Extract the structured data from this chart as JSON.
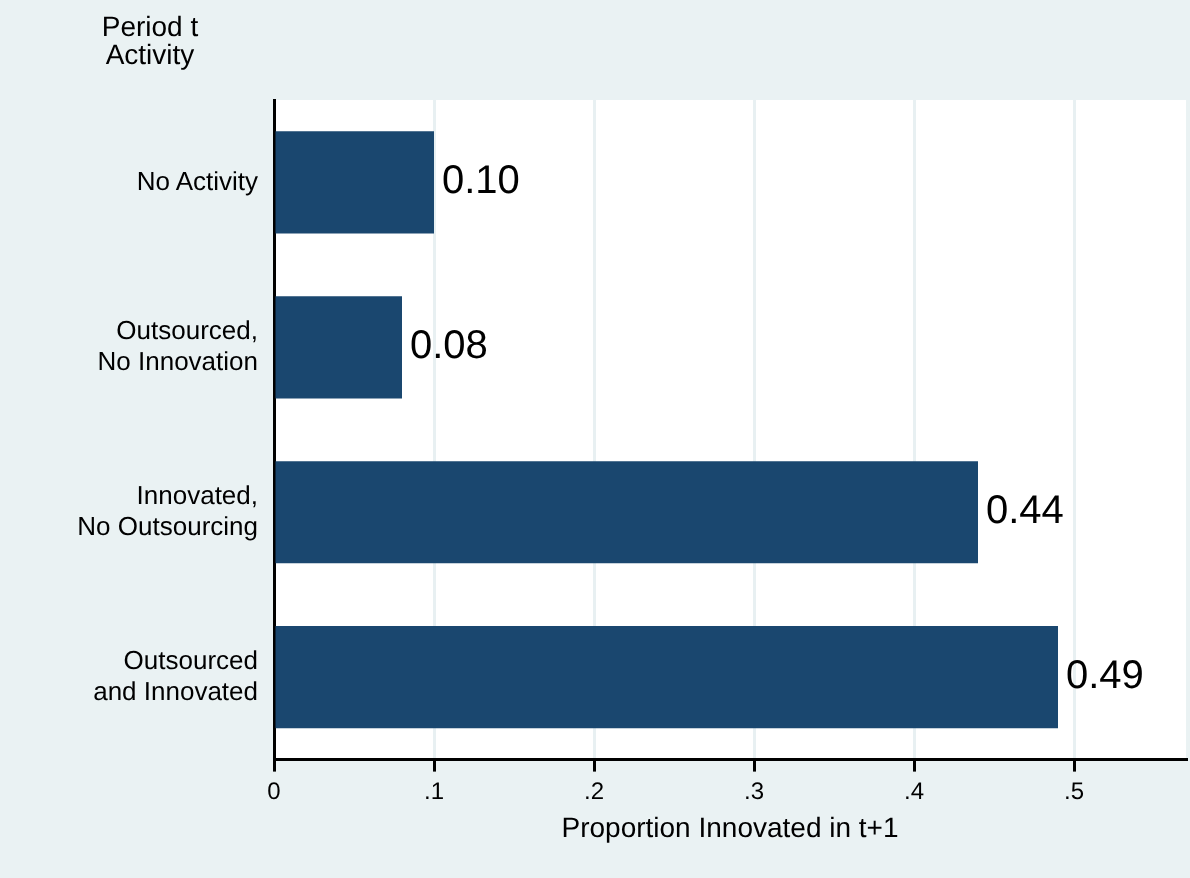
{
  "chart_data": {
    "type": "bar",
    "orientation": "horizontal",
    "ylabel": "Period t\nActivity",
    "xlabel": "Proportion Innovated in t+1",
    "categories": [
      "No Activity",
      "Outsourced,\nNo Innovation",
      "Innovated,\nNo Outsourcing",
      "Outsourced\nand Innovated"
    ],
    "values": [
      0.1,
      0.08,
      0.44,
      0.49
    ],
    "value_labels": [
      "0.10",
      "0.08",
      "0.44",
      "0.49"
    ],
    "color": "#1a476f",
    "xlim": [
      0,
      0.57
    ],
    "xticks": [
      0,
      {
        "value": 0.1,
        "label": ".1"
      },
      {
        "value": 0.2,
        "label": ".2"
      },
      {
        "value": 0.3,
        "label": ".3"
      },
      {
        "value": 0.4,
        "label": ".4"
      },
      {
        "value": 0.5,
        "label": ".5"
      }
    ],
    "grid": "x",
    "legend": false
  }
}
